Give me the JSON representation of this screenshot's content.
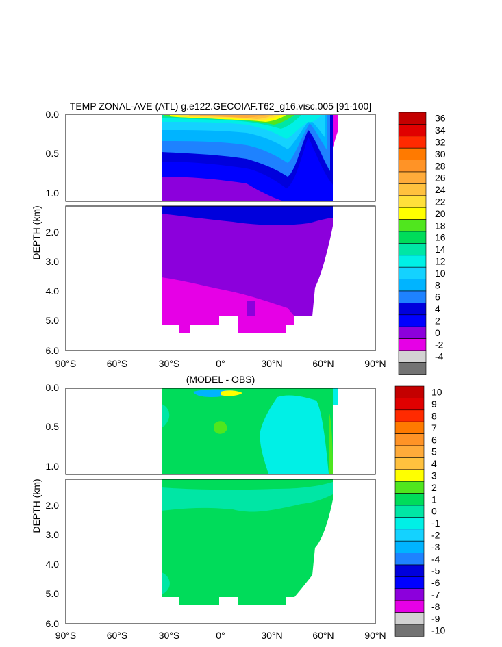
{
  "chart_data": [
    {
      "type": "heatmap",
      "title": "TEMP ZONAL-AVE (ATL) g.e122.GECOIAF.T62_g16.visc.005 [91-100]",
      "xlabel": "",
      "ylabel": "DEPTH (km)",
      "xlim": [
        -90,
        90
      ],
      "ylim_upper": [
        0.0,
        1.15
      ],
      "ylim_lower": [
        1.15,
        6.0
      ],
      "xticks": [
        "90°S",
        "60°S",
        "30°S",
        "0°",
        "30°N",
        "60°N",
        "90°N"
      ],
      "yticks_upper": [
        "0.0",
        "0.5",
        "1.0"
      ],
      "yticks_lower": [
        "2.0",
        "3.0",
        "4.0",
        "5.0",
        "6.0"
      ],
      "colorbar": {
        "labels": [
          "36",
          "34",
          "32",
          "30",
          "28",
          "26",
          "24",
          "22",
          "20",
          "18",
          "16",
          "14",
          "12",
          "10",
          "8",
          "6",
          "4",
          "2",
          "0",
          "-2",
          "-4"
        ],
        "colors": [
          "#c40000",
          "#e00000",
          "#ff2a00",
          "#ff7a00",
          "#ff9326",
          "#ffab3a",
          "#ffc13e",
          "#ffe03a",
          "#ffff00",
          "#50e61e",
          "#00dc5a",
          "#00e6a5",
          "#00f0e6",
          "#14d2ff",
          "#00b4ff",
          "#1e82ff",
          "#0000dc",
          "#0000ff",
          "#8c00dc",
          "#e600e6",
          "#d2d2d2",
          "#737373"
        ]
      },
      "grid": false
    },
    {
      "type": "heatmap",
      "title": "(MODEL - OBS)",
      "xlabel": "",
      "ylabel": "DEPTH (km)",
      "xlim": [
        -90,
        90
      ],
      "ylim_upper": [
        0.0,
        1.15
      ],
      "ylim_lower": [
        1.15,
        6.0
      ],
      "xticks": [
        "90°S",
        "60°S",
        "30°S",
        "0°",
        "30°N",
        "60°N",
        "90°N"
      ],
      "yticks_upper": [
        "0.0",
        "0.5",
        "1.0"
      ],
      "yticks_lower": [
        "2.0",
        "3.0",
        "4.0",
        "5.0",
        "6.0"
      ],
      "colorbar": {
        "labels": [
          "10",
          "9",
          "8",
          "7",
          "6",
          "5",
          "4",
          "3",
          "2",
          "1",
          "0",
          "-1",
          "-2",
          "-3",
          "-4",
          "-5",
          "-6",
          "-7",
          "-8",
          "-9",
          "-10"
        ],
        "colors": [
          "#c40000",
          "#e00000",
          "#ff2a00",
          "#ff7a00",
          "#ff9326",
          "#ffab3a",
          "#ffc13e",
          "#ffff00",
          "#50e61e",
          "#00dc5a",
          "#00e6a5",
          "#00f0e6",
          "#14d2ff",
          "#00b4ff",
          "#1e82ff",
          "#0000dc",
          "#0000ff",
          "#8c00dc",
          "#e600e6",
          "#d2d2d2",
          "#737373"
        ]
      },
      "grid": false
    }
  ]
}
